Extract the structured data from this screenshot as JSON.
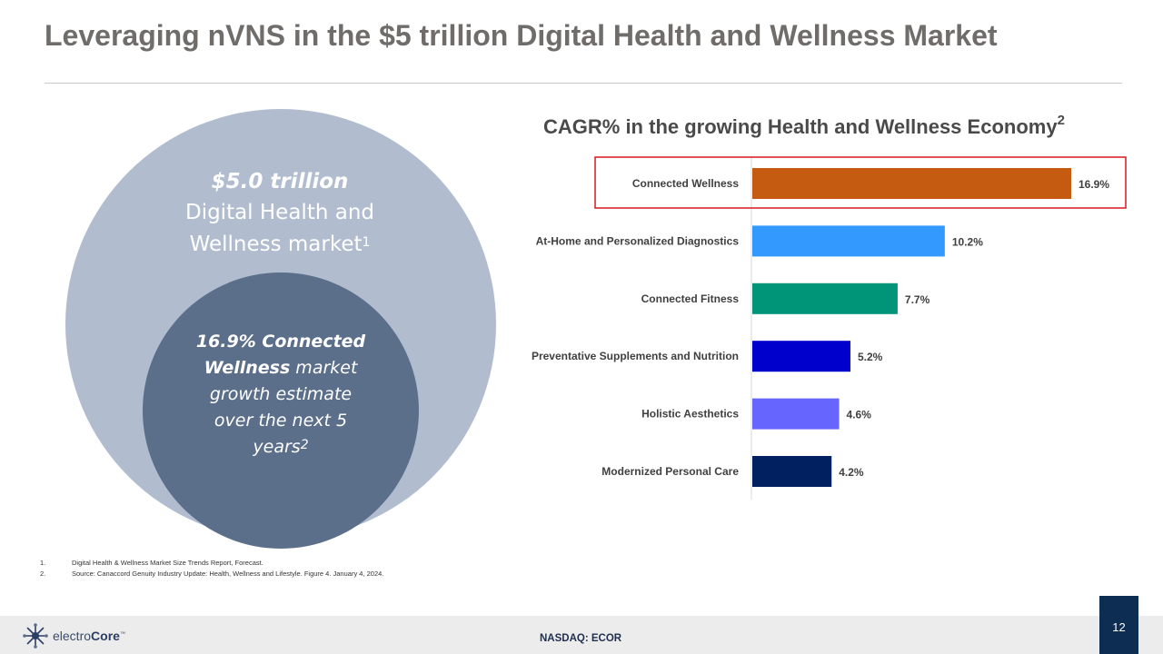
{
  "slide": {
    "title": "Leveraging nVNS in the $5 trillion Digital Health and Wellness Market",
    "page_number": "12",
    "footer_ticker": "NASDAQ: ECOR"
  },
  "market": {
    "value": "$5.0 trillion",
    "label_line1": "Digital Health and",
    "label_line2": "Wellness market",
    "label_sup": "1"
  },
  "growth": {
    "bold_line1": "16.9% Connected",
    "bold_line2": "Wellness",
    "rest_line2": " market",
    "line3": "growth estimate",
    "line4": "over the next 5",
    "line5": "years",
    "sup": "2"
  },
  "chart_data": {
    "type": "bar",
    "orientation": "horizontal",
    "title": "CAGR%  in the growing Health and Wellness Economy",
    "title_sup": "2",
    "categories": [
      "Connected Wellness",
      "At-Home and Personalized Diagnostics",
      "Connected Fitness",
      "Preventative Supplements and Nutrition",
      "Holistic Aesthetics",
      "Modernized Personal Care"
    ],
    "values": [
      16.9,
      10.2,
      7.7,
      5.2,
      4.6,
      4.2
    ],
    "value_labels": [
      "16.9%",
      "10.2%",
      "7.7%",
      "5.2%",
      "4.6%",
      "4.2%"
    ],
    "colors": [
      "#c55a11",
      "#3399ff",
      "#009478",
      "#0000cc",
      "#6666ff",
      "#002060"
    ],
    "highlighted_category": "Connected Wellness",
    "highlight_color": "#d71920",
    "xlim": [
      0,
      16.9
    ],
    "xlabel": "",
    "ylabel": ""
  },
  "footnotes": [
    {
      "num": "1.",
      "text": "Digital Health & Wellness Market Size Trends Report, Forecast."
    },
    {
      "num": "2.",
      "text": "Source: Canaccord Genuity Industry Update: Health, Wellness and Lifestyle. Figure 4. January 4, 2024."
    }
  ],
  "logo": {
    "text_light": "electro",
    "text_bold": "Core",
    "trademark": "™",
    "icon": "starburst-logo-icon"
  }
}
